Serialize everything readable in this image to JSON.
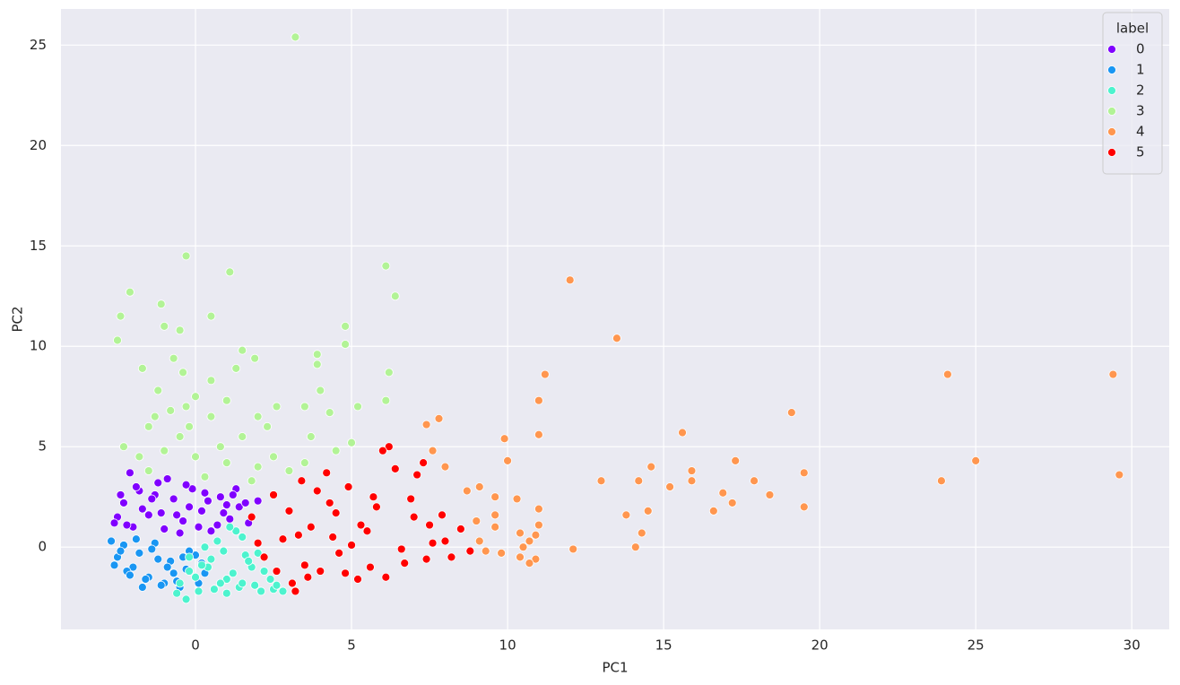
{
  "chart_data": {
    "type": "scatter",
    "x_label": "PC1",
    "y_label": "PC2",
    "xlim": [
      -4.31,
      31.2
    ],
    "ylim": [
      -4.1,
      26.8
    ],
    "xticks": [
      0,
      5,
      10,
      15,
      20,
      25,
      30
    ],
    "yticks": [
      0,
      5,
      10,
      15,
      20,
      25
    ],
    "grid": true,
    "legend_title": "label",
    "legend_loc": "upper right",
    "series": [
      {
        "name": "0",
        "color": "#8000ff",
        "x": [
          -2.5,
          -2.3,
          -2.0,
          -1.8,
          -1.5,
          -1.2,
          -1.0,
          -0.7,
          -0.4,
          -0.1,
          0.2,
          0.5,
          0.8,
          1.1,
          1.4,
          1.7,
          2.0,
          -2.4,
          -2.1,
          -1.7,
          -1.3,
          -0.9,
          -0.5,
          -0.2,
          0.3,
          0.7,
          1.0,
          1.3,
          -2.6,
          -1.9,
          -1.1,
          -0.3,
          0.4,
          1.2,
          -2.2,
          -1.4,
          -0.6,
          0.1,
          0.9,
          1.6
        ],
        "values": [
          1.5,
          2.2,
          1.0,
          2.8,
          1.6,
          3.2,
          0.9,
          2.4,
          1.3,
          2.9,
          1.8,
          0.8,
          2.5,
          1.4,
          2.0,
          1.2,
          2.3,
          2.6,
          3.7,
          1.9,
          2.6,
          3.4,
          0.7,
          2.0,
          2.7,
          1.1,
          2.1,
          2.9,
          1.2,
          3.0,
          1.7,
          3.1,
          2.3,
          2.6,
          1.1,
          2.4,
          1.6,
          1.0,
          1.7,
          2.2
        ]
      },
      {
        "name": "1",
        "color": "#1996f3",
        "x": [
          -2.7,
          -2.5,
          -2.3,
          -2.0,
          -1.8,
          -1.5,
          -1.3,
          -1.0,
          -0.8,
          -0.5,
          -0.3,
          0.0,
          0.3,
          -2.6,
          -2.2,
          -1.9,
          -1.6,
          -1.2,
          -0.9,
          -0.6,
          -0.2,
          0.2,
          -2.4,
          -2.1,
          -1.7,
          -1.4,
          -1.1,
          -0.7,
          -0.4,
          0.1
        ],
        "values": [
          0.3,
          -0.5,
          0.1,
          -1.0,
          -0.3,
          -1.5,
          0.2,
          -1.8,
          -0.7,
          -2.0,
          -1.1,
          -0.4,
          -1.3,
          -0.9,
          -1.2,
          0.4,
          -1.6,
          -0.6,
          -1.0,
          -1.7,
          -0.2,
          -0.8,
          -0.2,
          -1.4,
          -2.0,
          -0.1,
          -1.9,
          -1.3,
          -0.5,
          -1.8
        ]
      },
      {
        "name": "2",
        "color": "#4df3ce",
        "x": [
          -0.5,
          -0.2,
          0.1,
          0.4,
          0.7,
          1.0,
          1.3,
          1.6,
          1.9,
          2.2,
          2.5,
          2.8,
          -0.3,
          0.2,
          0.6,
          0.9,
          1.2,
          1.5,
          1.8,
          2.1,
          2.4,
          0.0,
          0.5,
          0.8,
          1.1,
          1.4,
          1.7,
          2.0,
          -0.6,
          -0.2,
          0.3,
          1.0,
          1.5,
          2.6
        ],
        "values": [
          -1.8,
          -0.5,
          -2.2,
          -1.0,
          0.3,
          -1.6,
          0.8,
          -0.4,
          -1.9,
          -1.2,
          -2.1,
          -2.2,
          -2.6,
          -0.9,
          -2.1,
          -0.2,
          -1.3,
          0.5,
          -1.0,
          -2.2,
          -1.6,
          -1.5,
          -0.6,
          -1.8,
          1.0,
          -2.0,
          -0.7,
          -0.3,
          -2.3,
          -1.2,
          0.0,
          -2.3,
          -1.8,
          -1.9
        ]
      },
      {
        "name": "3",
        "color": "#b2f396",
        "x": [
          3.2,
          -0.3,
          1.1,
          6.1,
          6.4,
          -2.1,
          -1.1,
          -2.4,
          0.5,
          -2.5,
          -1.0,
          -0.5,
          4.8,
          4.8,
          1.5,
          3.9,
          3.9,
          1.9,
          -1.7,
          -0.4,
          6.2,
          1.3,
          4.0,
          6.1,
          5.2,
          3.5,
          4.3,
          2.6,
          -1.2,
          0.5,
          -0.7,
          0.0,
          1.0,
          2.0,
          -0.8,
          -1.5,
          -0.2,
          0.5,
          1.5,
          -2.3,
          -1.8,
          -1.0,
          0.0,
          1.0,
          2.5,
          3.5,
          4.5,
          5.0,
          -0.5,
          0.8,
          2.0,
          3.0,
          -1.5,
          0.3,
          1.8,
          -0.3,
          -1.3,
          3.7,
          2.3
        ],
        "values": [
          25.4,
          14.5,
          13.7,
          14.0,
          12.5,
          12.7,
          12.1,
          11.5,
          11.5,
          10.3,
          11.0,
          10.8,
          11.0,
          10.1,
          9.8,
          9.6,
          9.1,
          9.4,
          8.9,
          8.7,
          8.7,
          8.9,
          7.8,
          7.3,
          7.0,
          7.0,
          6.7,
          7.0,
          7.8,
          8.3,
          9.4,
          7.5,
          7.3,
          6.5,
          6.8,
          6.0,
          6.0,
          6.5,
          5.5,
          5.0,
          4.5,
          4.8,
          4.5,
          4.2,
          4.5,
          4.2,
          4.8,
          5.2,
          5.5,
          5.0,
          4.0,
          3.8,
          3.8,
          3.5,
          3.3,
          7.0,
          6.5,
          5.5,
          6.0
        ]
      },
      {
        "name": "4",
        "color": "#ff964f",
        "x": [
          12.0,
          13.5,
          24.1,
          29.4,
          11.2,
          11.0,
          19.1,
          7.4,
          7.8,
          15.6,
          11.0,
          9.9,
          7.6,
          10.0,
          17.3,
          25.0,
          8.0,
          14.6,
          15.9,
          19.5,
          29.6,
          13.0,
          14.2,
          15.9,
          17.9,
          23.9,
          9.1,
          15.2,
          16.9,
          18.4,
          8.7,
          9.6,
          10.3,
          17.2,
          19.5,
          11.0,
          14.5,
          16.6,
          13.8,
          9.6,
          9.0,
          11.0,
          9.6,
          10.4,
          14.3,
          10.9,
          9.1,
          10.7,
          14.1,
          10.5,
          12.1,
          9.8,
          10.4,
          10.9,
          10.7,
          9.3
        ],
        "values": [
          13.3,
          10.4,
          8.6,
          8.6,
          8.6,
          7.3,
          6.7,
          6.1,
          6.4,
          5.7,
          5.6,
          5.4,
          4.8,
          4.3,
          4.3,
          4.3,
          4.0,
          4.0,
          3.8,
          3.7,
          3.6,
          3.3,
          3.3,
          3.3,
          3.3,
          3.3,
          3.0,
          3.0,
          2.7,
          2.6,
          2.8,
          2.5,
          2.4,
          2.2,
          2.0,
          1.9,
          1.8,
          1.8,
          1.6,
          1.6,
          1.3,
          1.1,
          1.0,
          0.7,
          0.7,
          0.6,
          0.3,
          0.3,
          0.0,
          0.0,
          -0.1,
          -0.3,
          -0.5,
          -0.6,
          -0.8,
          -0.2
        ]
      },
      {
        "name": "5",
        "color": "#ff0000",
        "x": [
          1.8,
          2.2,
          2.5,
          2.8,
          3.1,
          3.4,
          3.7,
          4.0,
          4.3,
          4.6,
          4.9,
          5.2,
          5.5,
          5.8,
          6.1,
          6.4,
          6.7,
          7.0,
          7.3,
          7.6,
          7.9,
          8.2,
          8.5,
          8.8,
          2.0,
          2.6,
          3.0,
          3.5,
          3.9,
          4.4,
          4.8,
          5.3,
          5.7,
          6.2,
          6.6,
          7.1,
          7.5,
          8.0,
          3.2,
          4.2,
          5.0,
          6.0,
          6.9,
          7.4,
          3.6,
          4.5,
          5.6,
          3.3
        ],
        "values": [
          1.5,
          -0.5,
          2.6,
          0.4,
          -1.8,
          3.3,
          1.0,
          -1.2,
          2.2,
          -0.3,
          3.0,
          -1.6,
          0.8,
          2.0,
          -1.5,
          3.9,
          -0.8,
          1.5,
          4.2,
          0.2,
          1.6,
          -0.5,
          0.9,
          -0.2,
          0.2,
          -1.2,
          1.8,
          -0.9,
          2.8,
          0.5,
          -1.3,
          1.1,
          2.5,
          5.0,
          -0.1,
          3.6,
          1.1,
          0.3,
          -2.2,
          3.7,
          0.1,
          4.8,
          2.4,
          -0.6,
          -1.5,
          1.7,
          -1.0,
          0.6
        ]
      }
    ]
  }
}
